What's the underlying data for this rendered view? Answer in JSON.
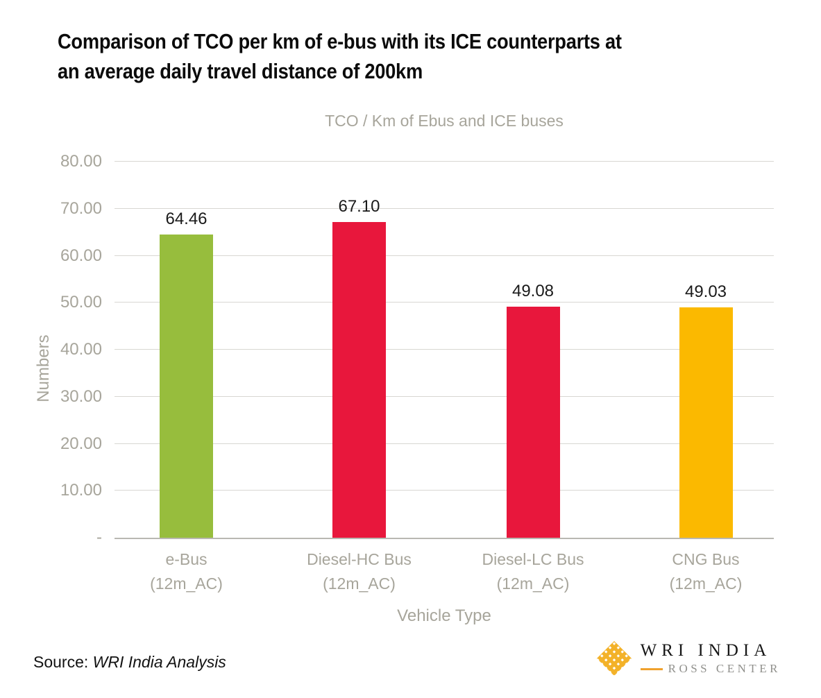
{
  "header": {
    "title_lines": [
      "Comparison of TCO per km of e-bus with its ICE counterparts at",
      "an average daily travel distance of 200km"
    ]
  },
  "chart_data": {
    "type": "bar",
    "title": "TCO / Km of Ebus and ICE buses",
    "xlabel": "Vehicle Type",
    "ylabel": "Numbers",
    "categories": [
      {
        "line1": "e-Bus",
        "line2": "(12m_AC)"
      },
      {
        "line1": "Diesel-HC Bus",
        "line2": "(12m_AC)"
      },
      {
        "line1": "Diesel-LC Bus",
        "line2": "(12m_AC)"
      },
      {
        "line1": "CNG Bus",
        "line2": "(12m_AC)"
      }
    ],
    "values": [
      64.46,
      67.1,
      49.08,
      49.03
    ],
    "value_labels": [
      "64.46",
      "67.10",
      "49.08",
      "49.03"
    ],
    "bar_colors": [
      "#97bd3d",
      "#e8173c",
      "#e8173c",
      "#fbb900"
    ],
    "ylim": [
      0,
      80
    ],
    "yticks": [
      {
        "label": "80.00",
        "value": 80
      },
      {
        "label": "70.00",
        "value": 70
      },
      {
        "label": "60.00",
        "value": 60
      },
      {
        "label": "50.00",
        "value": 50
      },
      {
        "label": "40.00",
        "value": 40
      },
      {
        "label": "30.00",
        "value": 30
      },
      {
        "label": "20.00",
        "value": 20
      },
      {
        "label": "10.00",
        "value": 10
      },
      {
        "label": "-",
        "value": 0
      }
    ],
    "grid": true,
    "legend": "none"
  },
  "footer": {
    "source_prefix": "Source: ",
    "source_text": "WRI India Analysis",
    "logo": {
      "line1": "WRI INDIA",
      "line2": "ROSS CENTER",
      "icon": "wri-weave-icon",
      "icon_color": "#f3b229",
      "dash_color": "#f0a12d"
    }
  },
  "colors": {
    "axis_text": "#a7a59b",
    "gridline": "#d8d7d2",
    "title_text": "#0b0b0b"
  }
}
